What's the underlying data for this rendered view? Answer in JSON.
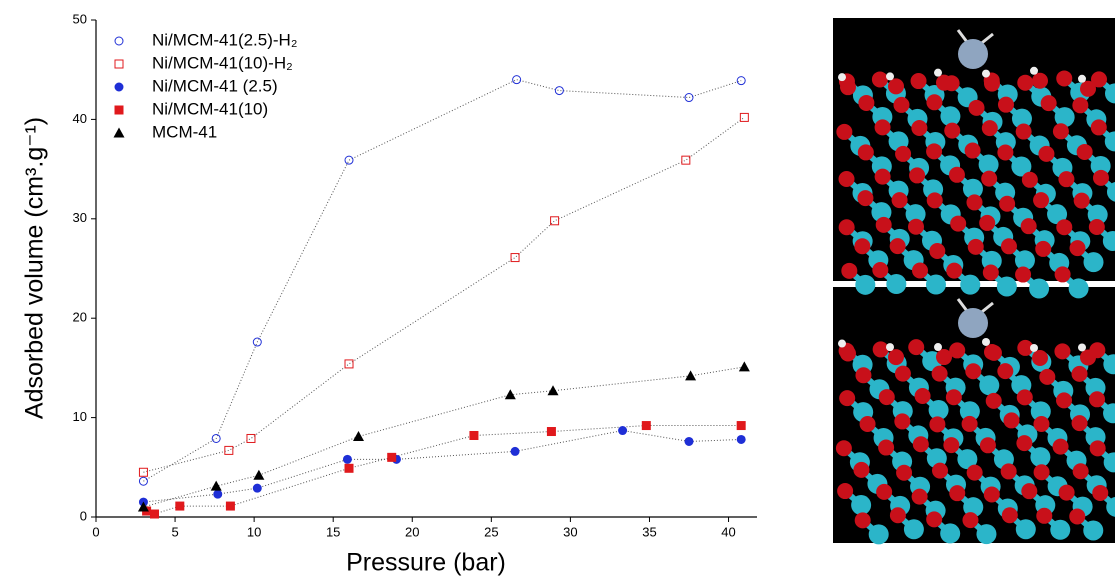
{
  "chart_data": {
    "type": "scatter",
    "xlabel": "Pressure (bar)",
    "ylabel": "Adsorbed volume (cm³.g⁻¹)",
    "xlim": [
      0,
      41.8
    ],
    "ylim": [
      0,
      50
    ],
    "xticks": [
      0,
      5,
      10,
      15,
      20,
      25,
      30,
      35,
      40
    ],
    "yticks": [
      0,
      10,
      20,
      30,
      40,
      50
    ],
    "connect": "dotted",
    "legend": "upper left",
    "series": [
      {
        "name": "Ni/MCM-41(2.5)-H₂",
        "color": "#1f2fd6",
        "marker": "circle-open",
        "x": [
          3,
          7.6,
          10.2,
          16,
          26.6,
          29.3,
          37.5,
          40.8
        ],
        "values": [
          3.6,
          7.9,
          17.6,
          35.9,
          44,
          42.9,
          42.2,
          43.9
        ]
      },
      {
        "name": "Ni/MCM-41(10)-H₂",
        "color": "#e0191c",
        "marker": "square-open",
        "x": [
          3,
          8.4,
          9.8,
          16,
          26.5,
          29,
          37.3,
          41
        ],
        "values": [
          4.5,
          6.7,
          7.9,
          15.4,
          26.1,
          29.8,
          35.9,
          40.2
        ]
      },
      {
        "name": "Ni/MCM-41 (2.5)",
        "color": "#1f2fd6",
        "marker": "circle",
        "x": [
          3,
          7.7,
          10.2,
          15.9,
          19,
          26.5,
          33.3,
          37.5,
          40.8
        ],
        "values": [
          1.5,
          2.3,
          2.9,
          5.8,
          5.8,
          6.6,
          8.7,
          7.6,
          7.8
        ]
      },
      {
        "name": "Ni/MCM-41(10)",
        "color": "#e0191c",
        "marker": "square",
        "x": [
          3.2,
          3.7,
          5.3,
          8.5,
          16,
          18.7,
          23.9,
          28.8,
          34.8,
          40.8
        ],
        "values": [
          0.6,
          0.3,
          1.1,
          1.1,
          4.9,
          6,
          8.2,
          8.6,
          9.2,
          9.2
        ]
      },
      {
        "name": "MCM-41",
        "color": "#000000",
        "marker": "triangle",
        "x": [
          3,
          7.6,
          10.3,
          16.6,
          26.2,
          28.9,
          37.6,
          41
        ],
        "values": [
          1,
          3.1,
          4.2,
          8.1,
          12.3,
          12.7,
          14.2,
          15.1
        ]
      }
    ]
  }
}
